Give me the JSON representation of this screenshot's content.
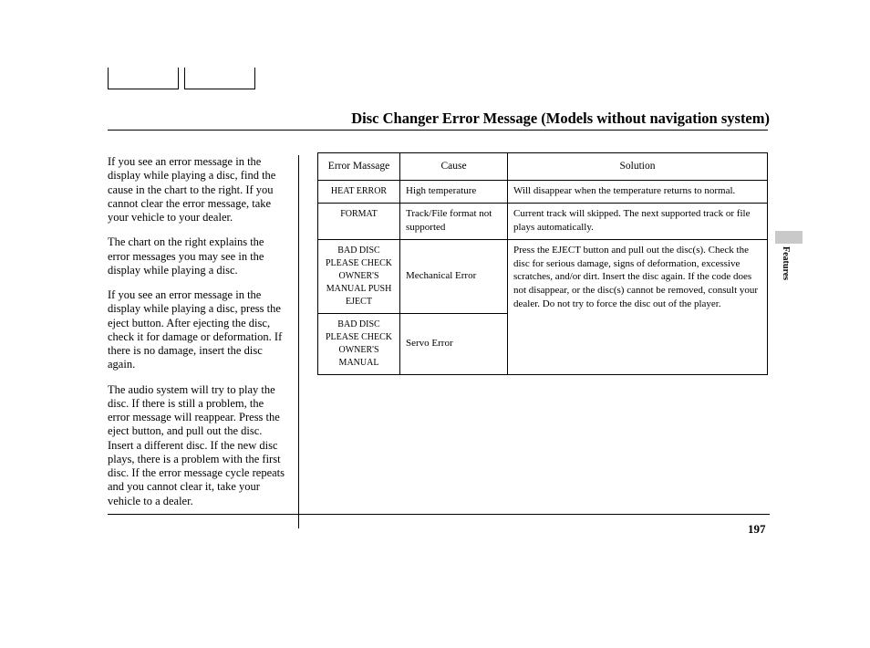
{
  "title": "Disc Changer Error Message (Models without navigation system)",
  "side_tab": "Features",
  "page_number": "197",
  "paragraphs": {
    "p1": "If you see an error message in the display while playing a disc, find the cause in the chart to the right. If you cannot clear the error message, take your vehicle to your dealer.",
    "p2": "The chart on the right explains the error messages you may see in the display while playing a disc.",
    "p3": "If you see an error message in the display while playing a disc, press the eject button. After ejecting the disc, check it for damage or deformation. If there is no damage, insert the disc again.",
    "p4": "The audio system will try to play the disc. If there is still a problem, the error message will reappear. Press the eject button, and pull out the disc. Insert a different disc. If the new disc plays, there is a problem with the first disc. If the error message cycle repeats and you cannot clear it, take your vehicle to a dealer."
  },
  "table": {
    "headers": {
      "err": "Error Massage",
      "cause": "Cause",
      "solution": "Solution"
    },
    "rows": {
      "r1": {
        "err": "HEAT ERROR",
        "cause": "High temperature",
        "solution": "Will disappear when the temperature returns to normal."
      },
      "r2": {
        "err": "FORMAT",
        "cause": "Track/File format not supported",
        "solution": "Current track will skipped. The next supported track or file plays automatically."
      },
      "r3": {
        "err": "BAD DISC PLEASE CHECK OWNER'S MANUAL PUSH EJECT",
        "cause": "Mechanical Error"
      },
      "r4": {
        "err": "BAD DISC PLEASE CHECK OWNER'S MANUAL",
        "cause": "Servo Error"
      },
      "merged_solution": "Press the EJECT button and pull out the disc(s). Check the disc for serious damage, signs of deformation, excessive scratches, and/or dirt. Insert the disc again. If the code does not disappear, or the disc(s) cannot be removed, consult your dealer. Do not try to force the disc out of the player."
    }
  },
  "colors": {
    "text": "#000000",
    "background": "#ffffff",
    "tab_bg": "#c9c9c9",
    "border": "#000000"
  },
  "typography": {
    "title_size_pt": 16.5,
    "body_size_pt": 12.5,
    "table_size_pt": 11,
    "font_family": "Times New Roman"
  }
}
